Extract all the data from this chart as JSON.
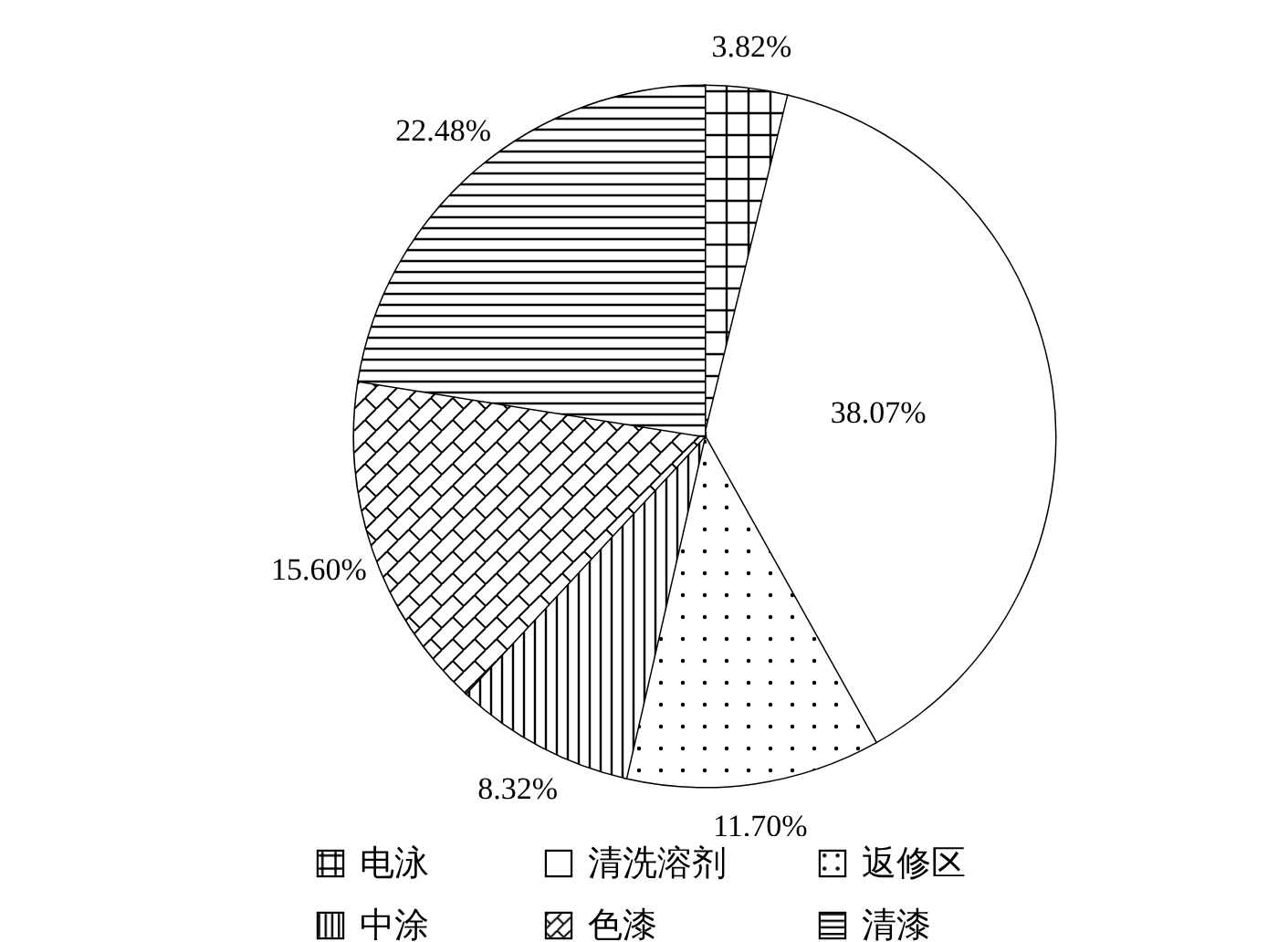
{
  "chart_data": {
    "type": "pie",
    "categories": [
      "电泳",
      "清洗溶剂",
      "返修区",
      "中涂",
      "色漆",
      "清漆"
    ],
    "values": [
      3.82,
      38.07,
      11.7,
      8.32,
      15.6,
      22.48
    ],
    "value_labels": [
      "3.82%",
      "38.07%",
      "11.70%",
      "8.32%",
      "15.60%",
      "22.48%"
    ],
    "colors": [
      "#ffffff",
      "#ffffff",
      "#ffffff",
      "#ffffff",
      "#ffffff",
      "#ffffff"
    ],
    "legend": "bottom"
  }
}
